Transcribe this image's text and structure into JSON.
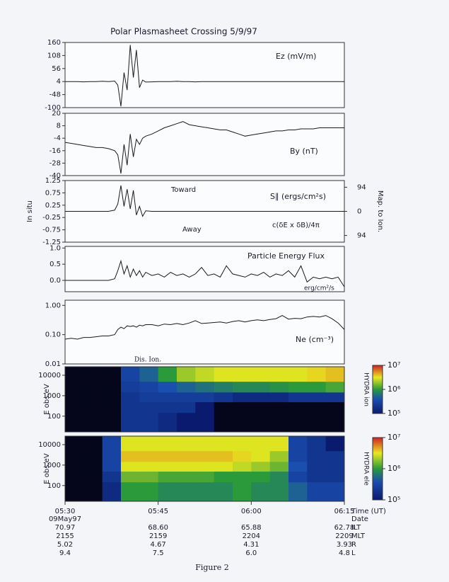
{
  "chart_data": [
    {
      "type": "line",
      "title": "Polar Plasmasheet Crossing 5/9/97",
      "label": "Ez (mV/m)",
      "color": "#1a1a1a",
      "x": [
        0,
        1,
        2,
        3,
        4,
        5,
        6,
        7,
        8,
        8.5,
        9,
        9.5,
        10,
        10.5,
        11,
        11.5,
        12,
        12.5,
        13,
        14,
        15,
        16,
        17,
        18,
        19,
        20,
        21,
        22,
        23,
        24,
        25,
        26,
        27,
        28,
        29,
        30,
        31,
        32,
        33,
        34,
        35,
        36,
        37,
        38,
        39,
        40,
        41,
        42,
        43,
        44,
        45
      ],
      "values": [
        4,
        4,
        4,
        3,
        4,
        4,
        5,
        4,
        6,
        -10,
        -95,
        40,
        -30,
        150,
        20,
        130,
        -20,
        10,
        2,
        3,
        4,
        4,
        4,
        5,
        4,
        4,
        3,
        4,
        4,
        4,
        4,
        4,
        4,
        4,
        4,
        4,
        4,
        4,
        4,
        4,
        4,
        4,
        4,
        4,
        4,
        4,
        4,
        4,
        4,
        4,
        4
      ],
      "ylim": [
        -100,
        160
      ],
      "yticks": [
        160,
        108,
        56,
        4,
        -48,
        -100
      ]
    },
    {
      "type": "line",
      "label": "By (nT)",
      "color": "#1a1a1a",
      "x": [
        0,
        1,
        2,
        3,
        4,
        5,
        6,
        7,
        8,
        8.5,
        9,
        9.5,
        10,
        10.5,
        11,
        11.5,
        12,
        12.5,
        13,
        14,
        15,
        16,
        17,
        18,
        19,
        20,
        21,
        22,
        23,
        24,
        25,
        26,
        27,
        28,
        29,
        30,
        31,
        32,
        33,
        34,
        35,
        36,
        37,
        38,
        39,
        40,
        41,
        42,
        43,
        44,
        45
      ],
      "values": [
        -8,
        -9,
        -10,
        -11,
        -12,
        -13,
        -13,
        -14,
        -16,
        -20,
        -38,
        -10,
        -30,
        0,
        -22,
        -5,
        -10,
        -4,
        -2,
        0,
        3,
        6,
        8,
        10,
        12,
        9,
        8,
        7,
        6,
        5,
        4,
        4,
        2,
        0,
        -2,
        -1,
        0,
        1,
        2,
        3,
        3,
        4,
        4,
        5,
        5,
        5,
        6,
        6,
        6,
        6,
        6
      ],
      "ylim": [
        -40,
        20
      ],
      "yticks": [
        20,
        8,
        -4,
        -16,
        -28,
        -40
      ]
    },
    {
      "type": "line",
      "label": "S∥ (ergs/cm²s)",
      "y_label": "In situ",
      "y2_label": "Map. to Ion.",
      "annotations": [
        "Toward",
        "Away",
        "c(δE x δB)/4π"
      ],
      "color": "#1a1a1a",
      "x": [
        0,
        1,
        2,
        3,
        4,
        5,
        6,
        7,
        8,
        8.5,
        9,
        9.5,
        10,
        10.5,
        11,
        11.5,
        12,
        12.5,
        13,
        14,
        15,
        16,
        17,
        18,
        19,
        20,
        21,
        22,
        23,
        24,
        25,
        26,
        27,
        28,
        29,
        30,
        31,
        32,
        33,
        34,
        35,
        36,
        37,
        38,
        39,
        40,
        41,
        42,
        43,
        44,
        45
      ],
      "values": [
        0,
        0,
        0,
        0,
        0,
        0,
        0,
        0,
        0.05,
        0.3,
        1.05,
        0.2,
        0.9,
        0.1,
        0.85,
        -0.15,
        0.2,
        -0.2,
        0.02,
        0,
        0,
        0,
        0,
        0,
        0,
        0,
        0,
        0,
        0,
        0,
        0,
        0,
        0,
        0,
        0,
        0,
        0,
        0,
        0,
        0,
        0,
        0,
        0,
        0,
        0,
        0,
        0,
        0,
        0,
        0,
        0
      ],
      "ylim": [
        -1.25,
        1.25
      ],
      "yticks": [
        1.25,
        0.75,
        0.25,
        -0.25,
        -0.75,
        -1.25
      ],
      "y2lim": [
        -120,
        120
      ],
      "y2ticks": [
        94,
        0,
        {
          "value": -94,
          "label": "94"
        }
      ]
    },
    {
      "type": "line",
      "label": "Particle Energy Flux",
      "unit_label": "erg/cm²/s",
      "color": "#1a1a1a",
      "x": [
        0,
        1,
        2,
        3,
        4,
        5,
        6,
        7,
        8,
        8.5,
        9,
        9.5,
        10,
        10.5,
        11,
        11.5,
        12,
        12.5,
        13,
        14,
        15,
        16,
        17,
        18,
        19,
        20,
        21,
        22,
        23,
        24,
        25,
        26,
        27,
        28,
        29,
        30,
        31,
        32,
        33,
        34,
        35,
        36,
        37,
        38,
        39,
        40,
        41,
        42,
        43,
        44,
        45
      ],
      "values": [
        0,
        0,
        0,
        0,
        0,
        0,
        0,
        0,
        0.05,
        0.3,
        0.6,
        0.2,
        0.45,
        0.1,
        0.35,
        0.15,
        0.3,
        0.1,
        0.25,
        0.15,
        0.2,
        0.1,
        0.25,
        0.15,
        0.2,
        0.1,
        0.2,
        0.4,
        0.15,
        0.2,
        0.1,
        0.45,
        0.2,
        0.15,
        0.1,
        0.2,
        0.15,
        0.25,
        0.1,
        0.2,
        0.15,
        0.3,
        0.1,
        0.45,
        -0.05,
        0.1,
        0.05,
        0.1,
        0.05,
        0.1,
        -0.2
      ],
      "ylim": [
        -0.35,
        1.05
      ],
      "yticks": [
        {
          "value": 1,
          "label": "1.0"
        },
        0.5,
        {
          "value": 0,
          "label": "0.0"
        }
      ]
    },
    {
      "type": "line",
      "label": "Ne (cm⁻³)",
      "annotation": "Dis. Ion.",
      "log_y": true,
      "color": "#1a1a1a",
      "x": [
        0,
        1,
        2,
        3,
        4,
        5,
        6,
        7,
        8,
        8.5,
        9,
        9.5,
        10,
        10.5,
        11,
        11.5,
        12,
        12.5,
        13,
        14,
        15,
        16,
        17,
        18,
        19,
        20,
        21,
        22,
        23,
        24,
        25,
        26,
        27,
        28,
        29,
        30,
        31,
        32,
        33,
        34,
        35,
        36,
        37,
        38,
        39,
        40,
        41,
        42,
        43,
        44,
        45
      ],
      "values": [
        0.07,
        0.075,
        0.07,
        0.08,
        0.08,
        0.085,
        0.09,
        0.09,
        0.1,
        0.15,
        0.18,
        0.16,
        0.2,
        0.19,
        0.2,
        0.18,
        0.21,
        0.2,
        0.22,
        0.22,
        0.2,
        0.23,
        0.22,
        0.24,
        0.22,
        0.25,
        0.3,
        0.24,
        0.25,
        0.26,
        0.27,
        0.25,
        0.28,
        0.3,
        0.27,
        0.3,
        0.32,
        0.3,
        0.33,
        0.35,
        0.45,
        0.34,
        0.36,
        0.35,
        0.4,
        0.42,
        0.4,
        0.45,
        0.35,
        0.25,
        0.15
      ],
      "ylim": [
        0.01,
        1.5
      ],
      "yticks": [
        {
          "value": 1,
          "label": "1.00"
        },
        {
          "value": 0.1,
          "label": "0.10"
        },
        0.01
      ]
    },
    {
      "type": "heatmap",
      "y_label": "E obs,eV",
      "colorbar_label": "HYDRA ion",
      "x_bins": [
        0,
        3,
        6,
        9,
        12,
        15,
        18,
        21,
        24,
        27,
        30,
        33,
        36,
        39,
        42,
        45
      ],
      "y_bins": [
        17,
        150,
        500,
        1500,
        5000,
        26000
      ],
      "ylim": [
        17,
        26000
      ],
      "yticks": [
        10000,
        1000,
        100
      ],
      "zlim": [
        100000,
        10000000
      ],
      "zticks": [
        {
          "value": 100000,
          "label": "10⁵"
        },
        {
          "value": 1000000,
          "label": "10⁶"
        },
        {
          "value": 10000000,
          "label": "10⁷"
        }
      ],
      "values": [
        [
          10000,
          10000,
          30000,
          200000,
          200000,
          150000,
          100000,
          100000,
          50000,
          30000,
          30000,
          30000,
          30000,
          30000,
          30000
        ],
        [
          10000,
          10000,
          30000,
          200000,
          200000,
          200000,
          200000,
          100000,
          60000,
          40000,
          40000,
          40000,
          40000,
          40000,
          40000
        ],
        [
          10000,
          10000,
          40000,
          200000,
          250000,
          250000,
          250000,
          250000,
          200000,
          150000,
          150000,
          150000,
          200000,
          200000,
          200000
        ],
        [
          10000,
          10000,
          40000,
          250000,
          300000,
          400000,
          500000,
          600000,
          700000,
          800000,
          800000,
          900000,
          1000000,
          1000000,
          1200000
        ],
        [
          10000,
          10000,
          50000,
          300000,
          500000,
          1000000,
          2000000,
          2500000,
          3000000,
          3000000,
          3000000,
          3000000,
          3000000,
          3500000,
          4000000
        ]
      ]
    },
    {
      "type": "heatmap",
      "y_label": "E obs,eV",
      "colorbar_label": "HYDRA ele",
      "x_bins": [
        0,
        3,
        6,
        9,
        12,
        15,
        18,
        21,
        24,
        27,
        30,
        33,
        36,
        39,
        42,
        45
      ],
      "y_bins": [
        17,
        150,
        500,
        1500,
        5000,
        26000
      ],
      "ylim": [
        17,
        26000
      ],
      "yticks": [
        10000,
        1000,
        100
      ],
      "zlim": [
        100000,
        10000000
      ],
      "zticks": [
        {
          "value": 100000,
          "label": "10⁵"
        },
        {
          "value": 1000000,
          "label": "10⁶"
        },
        {
          "value": 10000000,
          "label": "10⁷"
        }
      ],
      "values": [
        [
          10000,
          10000,
          150000,
          1000000,
          1000000,
          800000,
          800000,
          800000,
          800000,
          1000000,
          800000,
          800000,
          500000,
          300000,
          300000
        ],
        [
          10000,
          10000,
          200000,
          1500000,
          1500000,
          1200000,
          1200000,
          1200000,
          1000000,
          1000000,
          1000000,
          800000,
          300000,
          200000,
          200000
        ],
        [
          10000,
          10000,
          300000,
          3000000,
          3000000,
          3000000,
          3000000,
          3000000,
          3000000,
          2500000,
          2000000,
          1500000,
          400000,
          200000,
          200000
        ],
        [
          10000,
          10000,
          300000,
          4000000,
          4000000,
          4000000,
          4000000,
          4000000,
          4000000,
          3500000,
          3000000,
          2000000,
          300000,
          200000,
          200000
        ],
        [
          10000,
          10000,
          300000,
          3000000,
          3000000,
          3000000,
          3000000,
          3000000,
          3000000,
          3000000,
          3000000,
          3000000,
          300000,
          200000,
          100000
        ]
      ]
    }
  ],
  "time_axis": {
    "xlim": [
      0,
      45
    ],
    "xticks": [
      {
        "value": 0,
        "label": "05:30"
      },
      {
        "value": 15,
        "label": "05:45"
      },
      {
        "value": 30,
        "label": "06:00"
      },
      {
        "value": 45,
        "label": "06:15"
      }
    ],
    "date": "09May97",
    "row_labels": [
      "Time (UT)",
      "Date",
      "ILT",
      "MLT",
      "R",
      "L"
    ],
    "rows": [
      [
        "70.97",
        "68.60",
        "65.88",
        "62.78"
      ],
      [
        "2155",
        "2159",
        "2204",
        "2209"
      ],
      [
        "5.02",
        "4.67",
        "4.31",
        "3.93"
      ],
      [
        "9.4",
        "7.5",
        "6.0",
        "4.8"
      ]
    ]
  },
  "caption": "Figure 2"
}
